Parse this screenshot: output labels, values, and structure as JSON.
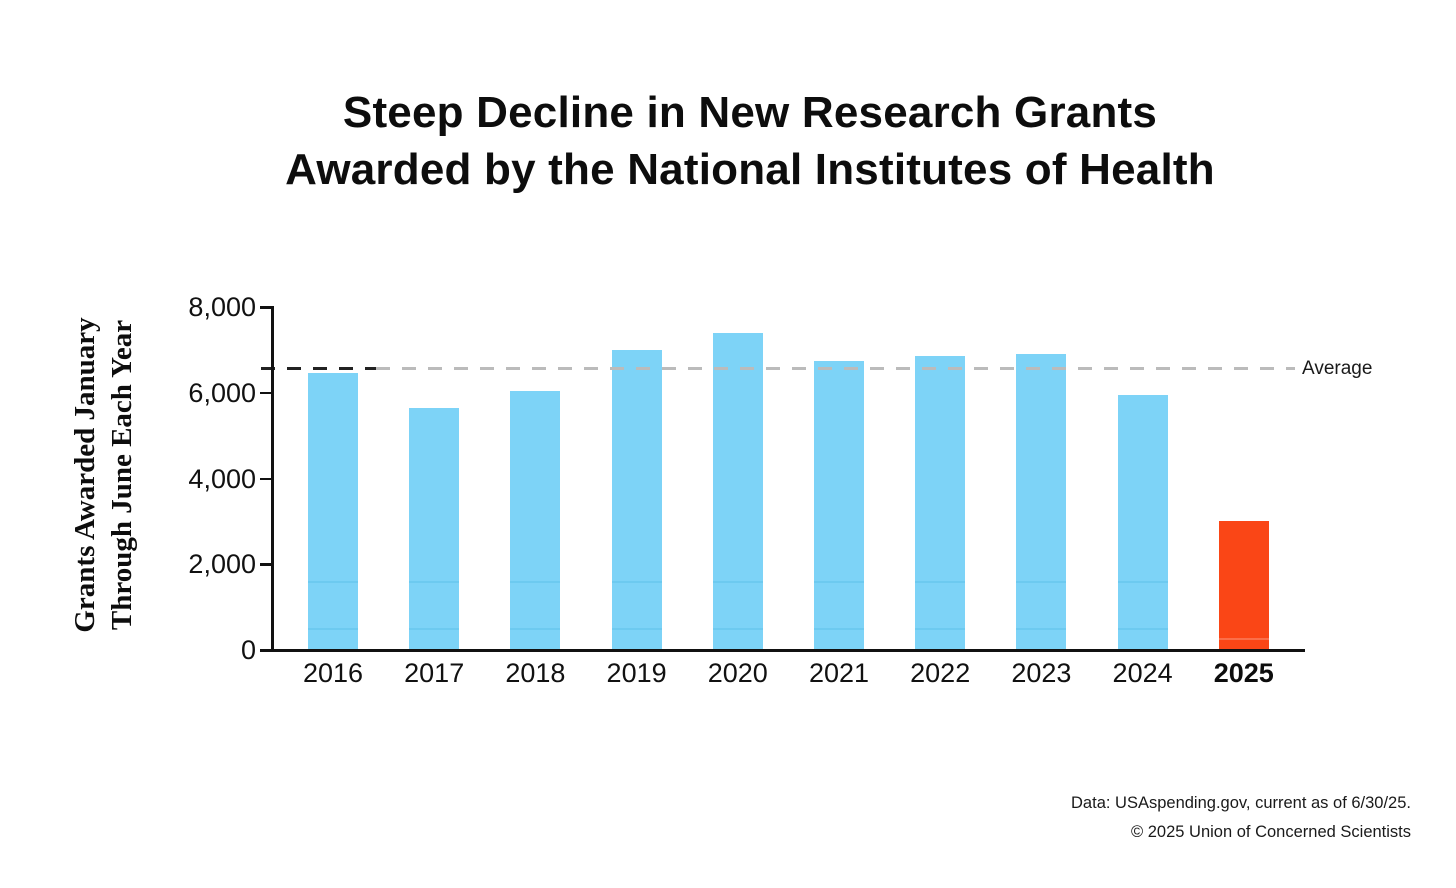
{
  "title": {
    "line1": "Steep Decline in New Research Grants",
    "line2": "Awarded by the National Institutes of Health"
  },
  "chart_data": {
    "type": "bar",
    "categories": [
      "2016",
      "2017",
      "2018",
      "2019",
      "2020",
      "2021",
      "2022",
      "2023",
      "2024",
      "2025"
    ],
    "values": [
      6450,
      5650,
      6050,
      7000,
      7400,
      6750,
      6850,
      6900,
      5950,
      3000
    ],
    "highlight_category": "2025",
    "average": 6556,
    "average_label": "Average",
    "title": "Steep Decline in New Research Grants Awarded by the National Institutes of Health",
    "xlabel": "",
    "ylabel_line1": "Grants Awarded January",
    "ylabel_line2": "Through June Each Year",
    "ylim": [
      0,
      8000
    ],
    "yticks": [
      0,
      2000,
      4000,
      6000,
      8000
    ],
    "ytick_labels": [
      "0",
      "2,000",
      "4,000",
      "6,000",
      "8,000"
    ],
    "grid": false,
    "legend": "none",
    "colors": {
      "bar": "#7DD3F7",
      "bar_stripe": "rgba(0,140,190,0.12)",
      "highlight": "#FA4616",
      "highlight_stripe": "rgba(255,255,255,0.22)",
      "axis": "#111111",
      "average_dash_dark": "#222222",
      "average_dash_light": "#BBBBBB"
    }
  },
  "footer": {
    "line1": "Data: USAspending.gov, current as of 6/30/25.",
    "line2": "© 2025 Union of Concerned Scientists"
  }
}
